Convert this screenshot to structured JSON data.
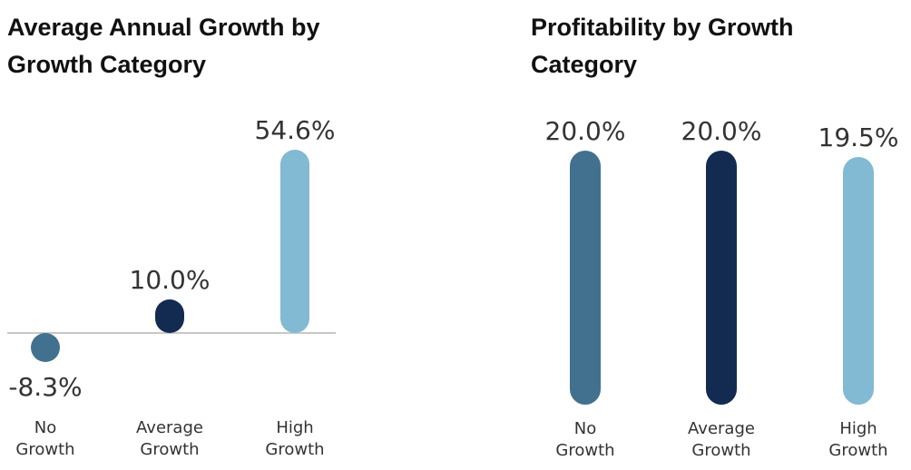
{
  "chart_data": [
    {
      "type": "bar",
      "title": "Average Annual Growth by Growth Category",
      "categories": [
        "No Growth",
        "Average Growth",
        "High Growth"
      ],
      "category_lines": [
        [
          "No",
          "Growth"
        ],
        [
          "Average",
          "Growth"
        ],
        [
          "High",
          "Growth"
        ]
      ],
      "values": [
        -8.3,
        10.0,
        54.6
      ],
      "labels": [
        "-8.3%",
        "10.0%",
        "54.6%"
      ],
      "colors": [
        "#41718F",
        "#142B51",
        "#82B9D3"
      ],
      "baseline": 0,
      "axis_line_color": "#C8C8C8"
    },
    {
      "type": "bar",
      "title": "Profitability by Growth Category",
      "categories": [
        "No Growth",
        "Average Growth",
        "High Growth"
      ],
      "category_lines": [
        [
          "No",
          "Growth"
        ],
        [
          "Average",
          "Growth"
        ],
        [
          "High",
          "Growth"
        ]
      ],
      "values": [
        20.0,
        20.0,
        19.5
      ],
      "labels": [
        "20.0%",
        "20.0%",
        "19.5%"
      ],
      "colors": [
        "#41718F",
        "#142B51",
        "#82B9D3"
      ]
    }
  ]
}
